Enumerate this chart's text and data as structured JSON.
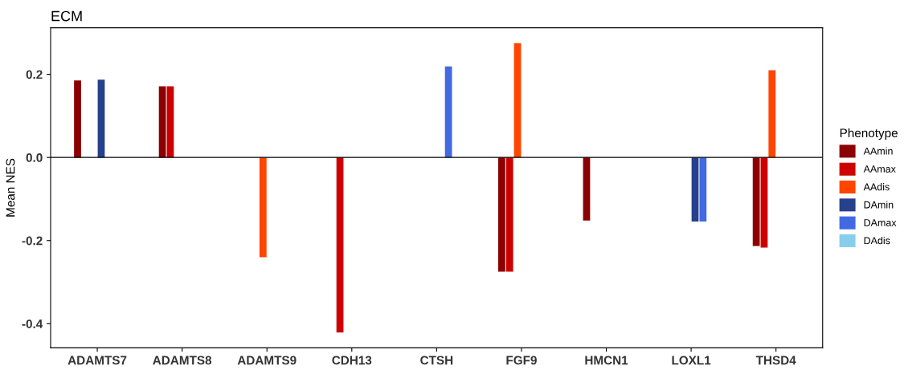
{
  "chart_data": {
    "type": "bar",
    "title": "ECM",
    "ylabel": "Mean NES",
    "legend_title": "Phenotype",
    "categories": [
      "ADAMTS7",
      "ADAMTS8",
      "ADAMTS9",
      "CDH13",
      "CTSH",
      "FGF9",
      "HMCN1",
      "LOXL1",
      "THSD4"
    ],
    "series": [
      {
        "name": "AAmin",
        "color": "#8b0000",
        "values": [
          0.185,
          0.171,
          null,
          null,
          null,
          -0.275,
          -0.152,
          null,
          -0.213
        ]
      },
      {
        "name": "AAmax",
        "color": "#cd0000",
        "values": [
          null,
          0.171,
          null,
          -0.421,
          null,
          -0.275,
          null,
          null,
          -0.217
        ]
      },
      {
        "name": "AAdis",
        "color": "#ff4500",
        "values": [
          null,
          null,
          -0.24,
          null,
          null,
          0.275,
          null,
          null,
          0.21
        ]
      },
      {
        "name": "DAmin",
        "color": "#27408b",
        "values": [
          0.187,
          null,
          null,
          null,
          null,
          null,
          null,
          -0.154,
          null
        ]
      },
      {
        "name": "DAmax",
        "color": "#4169e1",
        "values": [
          null,
          null,
          null,
          null,
          0.219,
          null,
          null,
          -0.154,
          null
        ]
      },
      {
        "name": "DAdis",
        "color": "#87ceeb",
        "values": [
          null,
          null,
          null,
          null,
          null,
          null,
          null,
          null,
          null
        ]
      }
    ],
    "ylim": [
      -0.458,
      0.312
    ],
    "yticks": [
      {
        "value": -0.4,
        "label": "-0.4"
      },
      {
        "value": -0.2,
        "label": "-0.2"
      },
      {
        "value": 0,
        "label": "0.0"
      },
      {
        "value": 0.2,
        "label": "0.2"
      }
    ],
    "ref_lines": [
      {
        "axis": "y",
        "value": 0,
        "color": "#000000"
      }
    ],
    "grid": false,
    "legend": "right"
  }
}
